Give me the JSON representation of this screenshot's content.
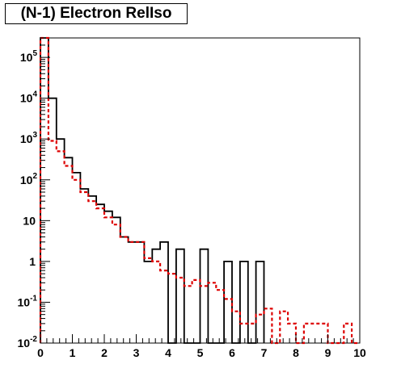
{
  "chart_data": {
    "type": "line",
    "title": "(N-1) Electron RelIso",
    "xlabel": "",
    "ylabel": "",
    "xlim": [
      0,
      10
    ],
    "ylim": [
      0.01,
      300000
    ],
    "yscale": "log",
    "grid": false,
    "x_ticks": [
      "0",
      "1",
      "2",
      "3",
      "4",
      "5",
      "6",
      "7",
      "8",
      "9",
      "10"
    ],
    "y_ticks": [
      {
        "value": 0.01,
        "base": "10",
        "exp": "-2"
      },
      {
        "value": 0.1,
        "base": "10",
        "exp": "-1"
      },
      {
        "value": 1,
        "base": "1",
        "exp": ""
      },
      {
        "value": 10,
        "base": "10",
        "exp": ""
      },
      {
        "value": 100,
        "base": "10",
        "exp": "2"
      },
      {
        "value": 1000,
        "base": "10",
        "exp": "3"
      },
      {
        "value": 10000,
        "base": "10",
        "exp": "4"
      },
      {
        "value": 100000,
        "base": "10",
        "exp": "5"
      }
    ],
    "bin_width": 0.25,
    "series": [
      {
        "style": "solid",
        "color": "#000000",
        "bin_edges": [
          0,
          0.25,
          0.5,
          0.75,
          1.0,
          1.25,
          1.5,
          1.75,
          2.0,
          2.25,
          2.5,
          2.75,
          3.0,
          3.25,
          3.5,
          3.75,
          4.0,
          4.25,
          4.5,
          4.75,
          5.0,
          5.25,
          5.5,
          5.75,
          6.0,
          6.25,
          6.5,
          6.75,
          7.0
        ],
        "values": [
          300000,
          10000,
          1000,
          350,
          150,
          60,
          40,
          25,
          17,
          12,
          4,
          3,
          3,
          1,
          2,
          3,
          0.01,
          2,
          0.01,
          0.01,
          2,
          0.01,
          0.01,
          1,
          0.01,
          1,
          0.01,
          1
        ]
      },
      {
        "style": "dashed",
        "color": "#dd0000",
        "bin_edges": [
          0,
          0.25,
          0.5,
          0.75,
          1.0,
          1.25,
          1.5,
          1.75,
          2.0,
          2.25,
          2.5,
          2.75,
          3.0,
          3.25,
          3.5,
          3.75,
          4.0,
          4.25,
          4.5,
          4.75,
          5.0,
          5.25,
          5.5,
          5.75,
          6.0,
          6.25,
          6.5,
          6.75,
          7.0,
          7.25,
          7.5,
          7.75,
          8.0,
          8.25,
          8.5,
          8.75,
          9.0,
          9.25,
          9.5,
          9.75,
          10.0
        ],
        "values": [
          300000,
          900,
          500,
          220,
          100,
          50,
          30,
          20,
          12,
          8,
          4,
          3,
          3,
          1.2,
          1,
          0.6,
          0.5,
          0.4,
          0.25,
          0.35,
          0.25,
          0.3,
          0.2,
          0.12,
          0.06,
          0.03,
          0.03,
          0.05,
          0.07,
          0.01,
          0.06,
          0.03,
          0.01,
          0.03,
          0.03,
          0.03,
          0.01,
          0.01,
          0.03,
          0.01
        ]
      }
    ]
  }
}
